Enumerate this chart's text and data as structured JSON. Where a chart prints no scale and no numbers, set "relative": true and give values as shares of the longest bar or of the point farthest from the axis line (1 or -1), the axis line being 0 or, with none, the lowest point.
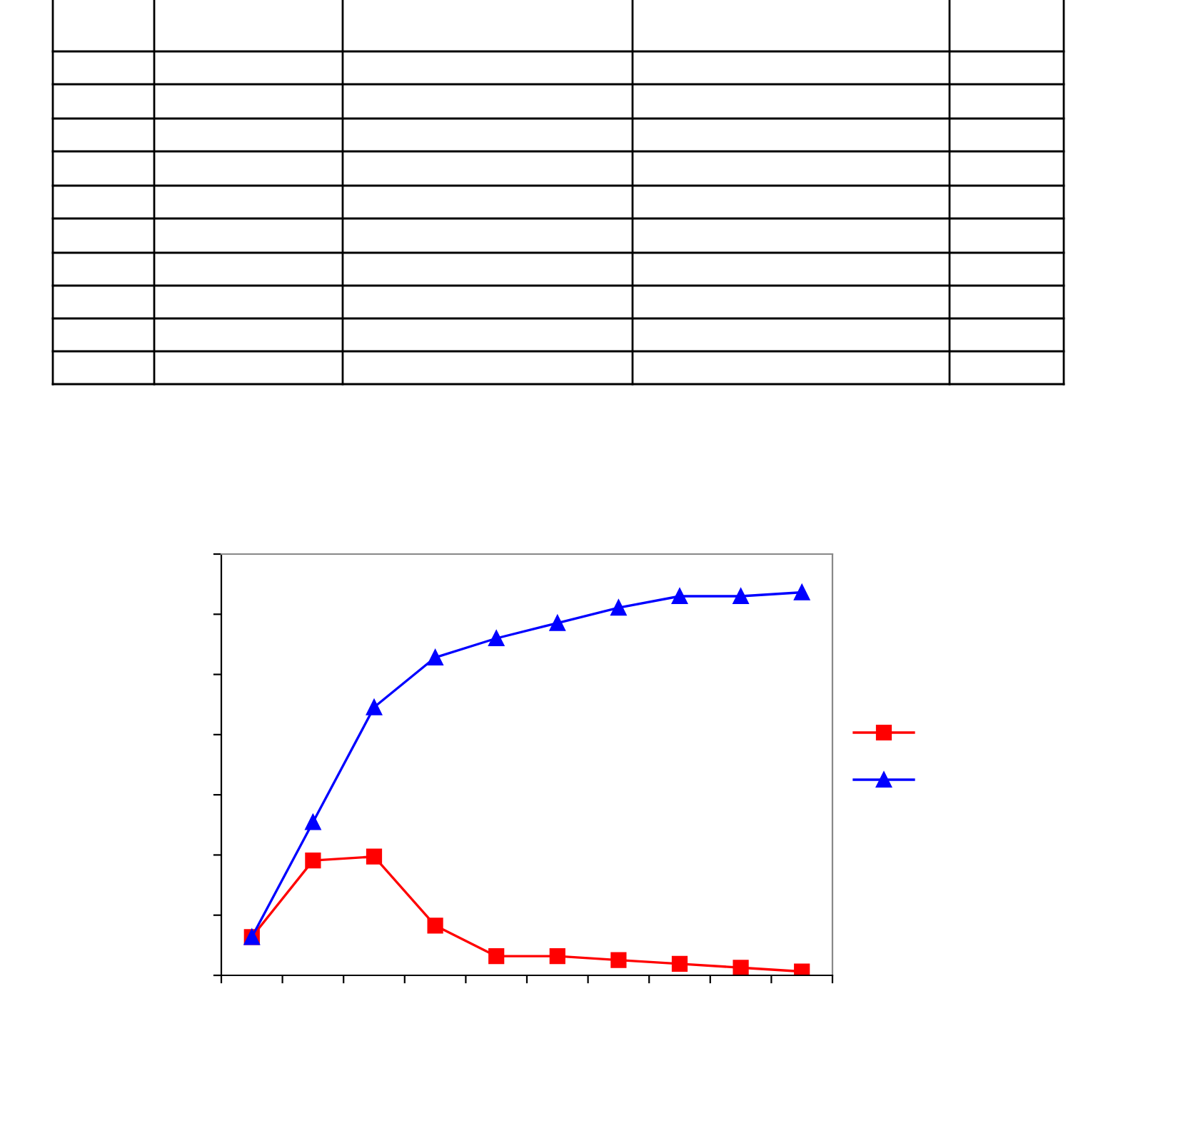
{
  "chart_data": {
    "type": "line",
    "relative": true,
    "categories": [
      null,
      null,
      null,
      null,
      null,
      null,
      null,
      null,
      null,
      null
    ],
    "series": [
      {
        "color": "#ff0000",
        "marker": "square",
        "values": [
          0.1,
          0.3,
          0.31,
          0.13,
          0.05,
          0.05,
          0.04,
          0.03,
          0.02,
          0.01
        ]
      },
      {
        "color": "#0000ff",
        "marker": "triangle",
        "values": [
          0.1,
          0.4,
          0.7,
          0.83,
          0.88,
          0.92,
          0.96,
          0.99,
          0.99,
          1.0
        ]
      }
    ],
    "line_style": "solid",
    "grid": false
  }
}
